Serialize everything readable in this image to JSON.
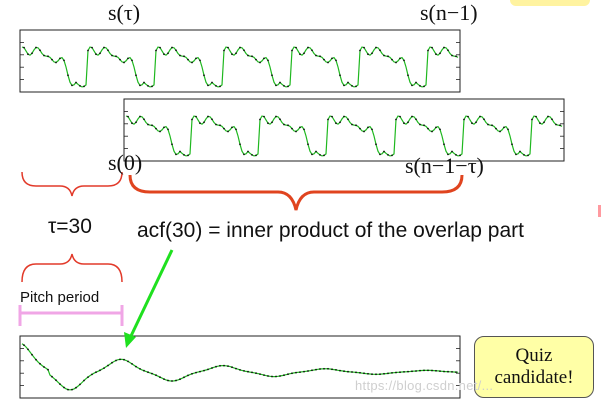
{
  "labels": {
    "s_tau": "s(τ)",
    "s_n_minus_1": "s(n−1)",
    "s_0": "s(0)",
    "s_n_minus_1_minus_tau": "s(n−1−τ)",
    "tau_value": "τ=30",
    "acf_caption": "acf(30) = inner product of the overlap part",
    "pitch_period": "Pitch period",
    "quiz_line1": "Quiz",
    "quiz_line2": "candidate!",
    "watermark": "https://blog.csdn.net/..."
  },
  "colors": {
    "waveform": "#1fb81f",
    "frame": "#222222",
    "brace": "#e0441f",
    "red_bracket": "#e23a2a",
    "pitch_bar": "#f0a6e6",
    "arrow": "#1fe01f",
    "quiz_bg": "#ffffa6"
  }
}
